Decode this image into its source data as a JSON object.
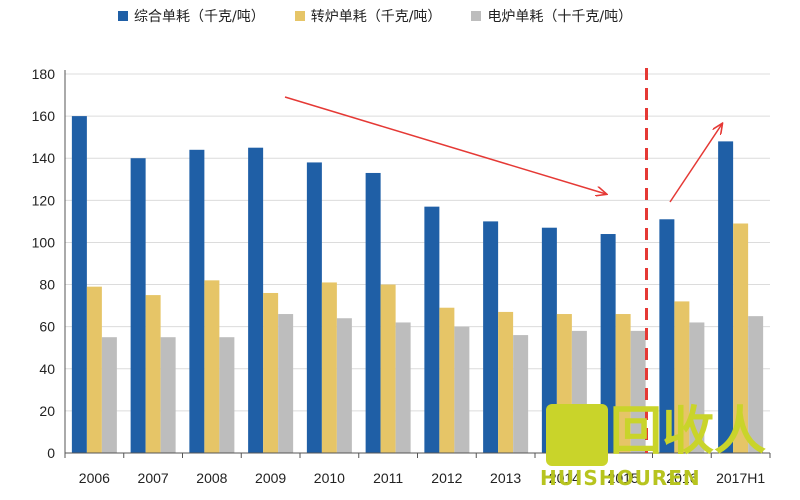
{
  "chart_data": {
    "type": "bar",
    "title": "",
    "xlabel": "",
    "ylabel": "",
    "categories": [
      "2006",
      "2007",
      "2008",
      "2009",
      "2010",
      "2011",
      "2012",
      "2013",
      "2014",
      "2015",
      "2016",
      "2017H1"
    ],
    "series": [
      {
        "name": "综合单耗（千克/吨）",
        "color": "#1f5fa6",
        "values": [
          160,
          140,
          144,
          145,
          138,
          133,
          117,
          110,
          107,
          104,
          111,
          148
        ]
      },
      {
        "name": "转炉单耗（千克/吨）",
        "color": "#e6c567",
        "values": [
          79,
          75,
          82,
          76,
          81,
          80,
          69,
          67,
          66,
          66,
          72,
          109
        ]
      },
      {
        "name": "电炉单耗（十千克/吨）",
        "color": "#bdbdbd",
        "values": [
          55,
          55,
          55,
          66,
          64,
          62,
          60,
          56,
          58,
          58,
          62,
          65
        ]
      }
    ],
    "ylim": [
      0,
      180
    ],
    "yticks": [
      0,
      20,
      40,
      60,
      80,
      100,
      120,
      140,
      160,
      180
    ],
    "grid": true,
    "legend_position": "top",
    "annotations": [
      {
        "type": "arrow",
        "color": "#e53935",
        "description": "downward trend arrow 2009→2015"
      },
      {
        "type": "arrow",
        "color": "#e53935",
        "description": "upward trend arrow 2016→2017H1"
      },
      {
        "type": "dashed-vertical-line",
        "color": "#e53935",
        "position_between": [
          "2015",
          "2016"
        ]
      }
    ]
  },
  "watermark": {
    "logo_text": "回收人",
    "subtext": "HUISHOUREN"
  }
}
